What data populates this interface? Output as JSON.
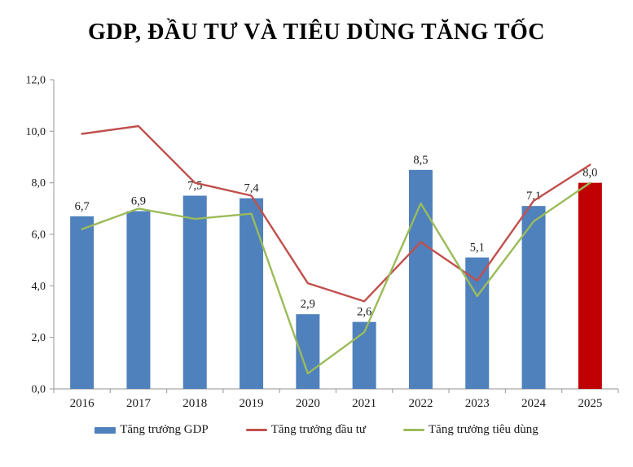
{
  "title": "GDP, ĐẦU TƯ VÀ TIÊU DÙNG TĂNG TỐC",
  "chart_data": {
    "type": "bar",
    "subtype": "bar-line-combo",
    "categories": [
      "2016",
      "2017",
      "2018",
      "2019",
      "2020",
      "2021",
      "2022",
      "2023",
      "2024",
      "2025"
    ],
    "series": [
      {
        "name": "Tăng trưởng GDP",
        "type": "bar",
        "color": "#4F81BD",
        "highlight_index": 9,
        "highlight_color": "#C00000",
        "values": [
          6.7,
          6.9,
          7.5,
          7.4,
          2.9,
          2.6,
          8.5,
          5.1,
          7.1,
          8.0
        ],
        "labels": [
          "6,7",
          "6,9",
          "7,5",
          "7,4",
          "2,9",
          "2,6",
          "8,5",
          "5,1",
          "7,1",
          "8,0"
        ]
      },
      {
        "name": "Tăng trưởng đầu tư",
        "type": "line",
        "color": "#C0504D",
        "values": [
          9.9,
          10.2,
          8.0,
          7.5,
          4.1,
          3.4,
          5.7,
          4.2,
          7.3,
          8.7
        ]
      },
      {
        "name": "Tăng trưởng tiêu dùng",
        "type": "line",
        "color": "#9BBB59",
        "values": [
          6.2,
          7.0,
          6.6,
          6.8,
          0.6,
          2.2,
          7.2,
          3.6,
          6.5,
          8.0
        ]
      }
    ],
    "title": "GDP, ĐẦU TƯ VÀ TIÊU DÙNG TĂNG TỐC",
    "xlabel": "",
    "ylabel": "",
    "ylim": [
      0,
      12
    ],
    "ytick_step": 2,
    "ytick_labels": [
      "0,0",
      "2,0",
      "4,0",
      "6,0",
      "8,0",
      "10,0",
      "12,0"
    ],
    "grid": false,
    "legend_position": "bottom"
  },
  "legend": {
    "items": [
      {
        "label": "Tăng trưởng GDP",
        "swatch": "bar",
        "color": "#4F81BD"
      },
      {
        "label": "Tăng trưởng đầu tư",
        "swatch": "line",
        "color": "#C0504D"
      },
      {
        "label": "Tăng trưởng tiêu dùng",
        "swatch": "line",
        "color": "#9BBB59"
      }
    ]
  },
  "colors": {
    "axis": "#A6A6A6",
    "tick_text": "#1a1a1a",
    "data_label_text": "#1a1a1a",
    "background": "#ffffff"
  }
}
